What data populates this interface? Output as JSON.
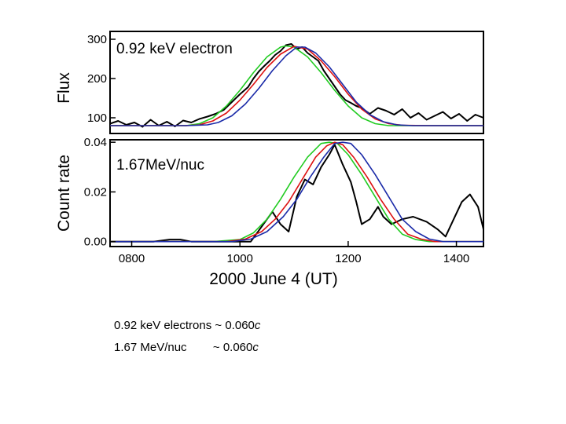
{
  "chart_data": [
    {
      "type": "line",
      "panel_label": "0.92 keV electron",
      "ylabel": "Flux",
      "xlim": [
        760,
        1450
      ],
      "ylim": [
        60,
        320
      ],
      "yticks": [
        100,
        200,
        300
      ],
      "ytick_labels": [
        "100",
        "200",
        "300"
      ],
      "series": [
        {
          "name": "observed",
          "color": "#000000",
          "x": [
            760,
            775,
            790,
            805,
            820,
            835,
            850,
            865,
            880,
            895,
            910,
            925,
            940,
            955,
            970,
            985,
            1000,
            1015,
            1025,
            1035,
            1045,
            1055,
            1065,
            1075,
            1085,
            1095,
            1105,
            1115,
            1125,
            1135,
            1145,
            1155,
            1165,
            1175,
            1185,
            1195,
            1205,
            1215,
            1225,
            1240,
            1255,
            1270,
            1285,
            1300,
            1315,
            1330,
            1345,
            1360,
            1375,
            1390,
            1405,
            1420,
            1435,
            1450
          ],
          "y": [
            85,
            92,
            82,
            88,
            77,
            95,
            80,
            90,
            78,
            93,
            88,
            97,
            103,
            110,
            120,
            140,
            160,
            178,
            200,
            218,
            232,
            245,
            260,
            270,
            285,
            288,
            275,
            280,
            265,
            255,
            245,
            220,
            200,
            180,
            160,
            145,
            138,
            130,
            125,
            110,
            125,
            118,
            108,
            122,
            100,
            112,
            95,
            105,
            115,
            98,
            110,
            92,
            108,
            100
          ]
        },
        {
          "name": "model-green",
          "color": "#22cc22",
          "x": [
            760,
            800,
            850,
            900,
            925,
            950,
            975,
            1000,
            1025,
            1050,
            1075,
            1085,
            1100,
            1125,
            1150,
            1175,
            1200,
            1225,
            1250,
            1275,
            1300,
            1350,
            1400,
            1450
          ],
          "y": [
            80,
            80,
            80,
            80,
            85,
            100,
            130,
            170,
            215,
            255,
            280,
            283,
            280,
            255,
            215,
            170,
            130,
            100,
            85,
            80,
            80,
            80,
            80,
            80
          ]
        },
        {
          "name": "model-red",
          "color": "#dd1111",
          "x": [
            760,
            800,
            850,
            900,
            925,
            950,
            975,
            1000,
            1025,
            1050,
            1075,
            1100,
            1125,
            1150,
            1175,
            1200,
            1225,
            1250,
            1275,
            1300,
            1350,
            1400,
            1450
          ],
          "y": [
            80,
            80,
            80,
            80,
            82,
            92,
            112,
            145,
            185,
            228,
            262,
            282,
            275,
            245,
            205,
            160,
            122,
            97,
            85,
            81,
            80,
            80,
            80
          ]
        },
        {
          "name": "model-blue",
          "color": "#1a2aa8",
          "x": [
            760,
            800,
            850,
            900,
            940,
            960,
            985,
            1010,
            1035,
            1060,
            1085,
            1105,
            1120,
            1140,
            1165,
            1190,
            1215,
            1240,
            1265,
            1290,
            1320,
            1360,
            1400,
            1450
          ],
          "y": [
            80,
            80,
            80,
            80,
            82,
            88,
            105,
            135,
            175,
            220,
            258,
            280,
            280,
            265,
            230,
            185,
            140,
            108,
            90,
            82,
            80,
            80,
            80,
            80
          ]
        }
      ]
    },
    {
      "type": "line",
      "panel_label": "1.67MeV/nuc",
      "ylabel": "Count rate",
      "xlabel": "2000 June 4 (UT)",
      "xlim": [
        760,
        1450
      ],
      "ylim": [
        -0.002,
        0.041
      ],
      "yticks": [
        0.0,
        0.02,
        0.04
      ],
      "ytick_labels": [
        "0.00",
        "0.02",
        "0.04"
      ],
      "xticks": [
        800,
        1000,
        1200,
        1400
      ],
      "xtick_labels": [
        "0800",
        "1000",
        "1200",
        "1400"
      ],
      "series": [
        {
          "name": "observed",
          "color": "#000000",
          "x": [
            760,
            800,
            840,
            870,
            890,
            910,
            940,
            980,
            1020,
            1040,
            1060,
            1075,
            1090,
            1105,
            1120,
            1135,
            1150,
            1165,
            1175,
            1190,
            1205,
            1215,
            1225,
            1240,
            1255,
            1265,
            1280,
            1300,
            1320,
            1345,
            1365,
            1380,
            1395,
            1410,
            1425,
            1440,
            1450
          ],
          "y": [
            0,
            0,
            0,
            0.0008,
            0.0008,
            0,
            0,
            0,
            0,
            0.006,
            0.012,
            0.007,
            0.004,
            0.018,
            0.025,
            0.023,
            0.03,
            0.035,
            0.039,
            0.031,
            0.024,
            0.016,
            0.007,
            0.009,
            0.014,
            0.01,
            0.007,
            0.009,
            0.01,
            0.008,
            0.005,
            0.002,
            0.009,
            0.016,
            0.019,
            0.014,
            0.005
          ]
        },
        {
          "name": "model-green",
          "color": "#22cc22",
          "x": [
            760,
            950,
            1000,
            1025,
            1050,
            1075,
            1100,
            1125,
            1150,
            1165,
            1180,
            1200,
            1225,
            1250,
            1275,
            1300,
            1325,
            1350,
            1400,
            1450
          ],
          "y": [
            0,
            0,
            0.0008,
            0.0035,
            0.009,
            0.017,
            0.026,
            0.034,
            0.0395,
            0.04,
            0.0395,
            0.035,
            0.027,
            0.018,
            0.009,
            0.003,
            0.0008,
            0,
            0,
            0
          ]
        },
        {
          "name": "model-red",
          "color": "#dd1111",
          "x": [
            760,
            975,
            1010,
            1040,
            1065,
            1090,
            1115,
            1140,
            1160,
            1175,
            1190,
            1210,
            1235,
            1260,
            1285,
            1310,
            1335,
            1360,
            1400,
            1450
          ],
          "y": [
            0,
            0,
            0.001,
            0.004,
            0.009,
            0.016,
            0.025,
            0.034,
            0.0385,
            0.04,
            0.039,
            0.034,
            0.026,
            0.017,
            0.009,
            0.003,
            0.001,
            0,
            0,
            0
          ]
        },
        {
          "name": "model-blue",
          "color": "#1a2aa8",
          "x": [
            760,
            985,
            1020,
            1050,
            1080,
            1105,
            1130,
            1155,
            1175,
            1190,
            1205,
            1225,
            1250,
            1275,
            1300,
            1325,
            1350,
            1375,
            1400,
            1450
          ],
          "y": [
            0,
            0,
            0.001,
            0.004,
            0.01,
            0.017,
            0.026,
            0.034,
            0.0395,
            0.04,
            0.0395,
            0.035,
            0.027,
            0.018,
            0.009,
            0.004,
            0.001,
            0,
            0,
            0
          ]
        }
      ]
    }
  ],
  "caption": {
    "line1_prefix": "0.92 keV electrons ~ 0.060",
    "line1_suffix": "c",
    "line2_prefix": "1.67 MeV/nuc        ~ 0.060",
    "line2_suffix": "c"
  }
}
